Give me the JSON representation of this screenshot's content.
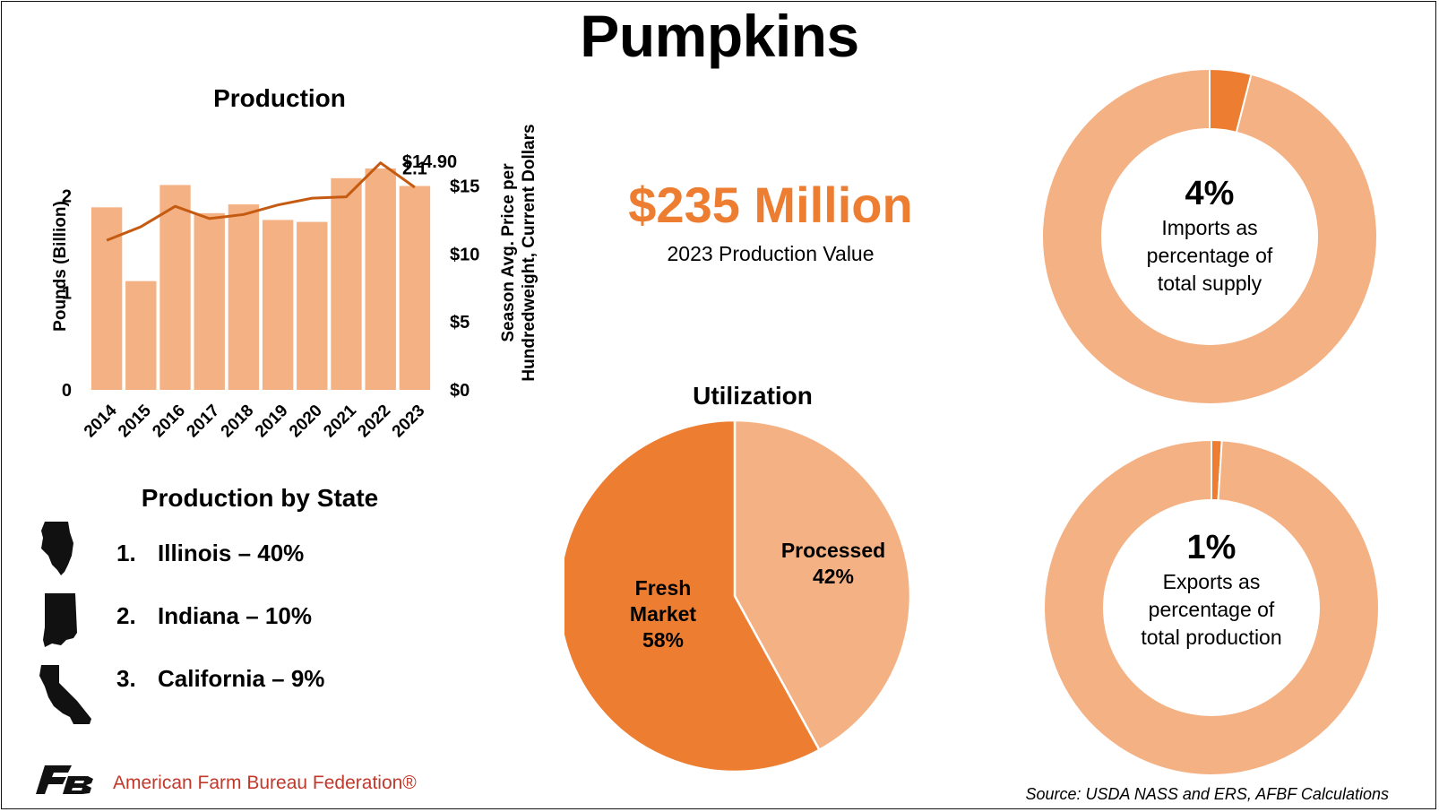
{
  "title": "Pumpkins",
  "production_value": {
    "amount": "$235 Million",
    "label": "2023 Production Value"
  },
  "chart_data": [
    {
      "type": "bar",
      "title": "Production",
      "categories": [
        "2014",
        "2015",
        "2016",
        "2017",
        "2018",
        "2019",
        "2020",
        "2021",
        "2022",
        "2023"
      ],
      "series": [
        {
          "values": [
            1.88,
            1.12,
            2.11,
            1.82,
            1.91,
            1.75,
            1.73,
            2.18,
            2.28,
            2.1
          ],
          "axis": "left",
          "style": "bar"
        },
        {
          "values": [
            11.0,
            12.0,
            13.5,
            12.6,
            12.9,
            13.6,
            14.1,
            14.2,
            16.7,
            14.9
          ],
          "axis": "right",
          "style": "line"
        }
      ],
      "ylabel": "Pounds (Billion)",
      "y2label": "Season Avg. Price per Hundredweight, Current Dollars",
      "ylim": [
        0,
        2.4
      ],
      "y2lim": [
        0,
        17.14
      ],
      "yticks": [
        "0",
        "1",
        "2"
      ],
      "y2ticks": [
        "$0",
        "$5",
        "$10",
        "$15"
      ],
      "annotations": {
        "price_last": "$14.90",
        "production_last": "2.1"
      },
      "colors": {
        "bar": "#F4B183",
        "line": "#C55A11"
      }
    },
    {
      "type": "pie",
      "title": "Utilization",
      "labels": [
        "Processed",
        "Fresh Market"
      ],
      "values": [
        42,
        58
      ],
      "value_labels": [
        "42%",
        "58%"
      ],
      "colors": [
        "#F4B183",
        "#ED7D31"
      ]
    },
    {
      "type": "pie",
      "variant": "donut",
      "values": [
        4,
        96
      ],
      "value_label": "4%",
      "label": "Imports as percentage of total supply",
      "colors": [
        "#ED7D31",
        "#F4B183"
      ]
    },
    {
      "type": "pie",
      "variant": "donut",
      "values": [
        1,
        99
      ],
      "value_label": "1%",
      "label": "Exports as percentage of total production",
      "colors": [
        "#ED7D31",
        "#F4B183"
      ]
    }
  ],
  "imports_label_lines": [
    "Imports as",
    "percentage of",
    "total supply"
  ],
  "exports_label_lines": [
    "Exports as",
    "percentage of",
    "total production"
  ],
  "fresh_label_lines": [
    "Fresh",
    "Market"
  ],
  "states": {
    "title": "Production by State",
    "items": [
      {
        "rank": "1.",
        "name": "Illinois – 40%",
        "icon": "illinois-icon"
      },
      {
        "rank": "2.",
        "name": "Indiana – 10%",
        "icon": "indiana-icon"
      },
      {
        "rank": "3.",
        "name": "California – 9%",
        "icon": "california-icon"
      }
    ]
  },
  "logo": {
    "text": "American Farm Bureau Federation®",
    "icon": "afbf-logo-icon"
  },
  "source": "Source: USDA NASS and ERS, AFBF Calculations"
}
